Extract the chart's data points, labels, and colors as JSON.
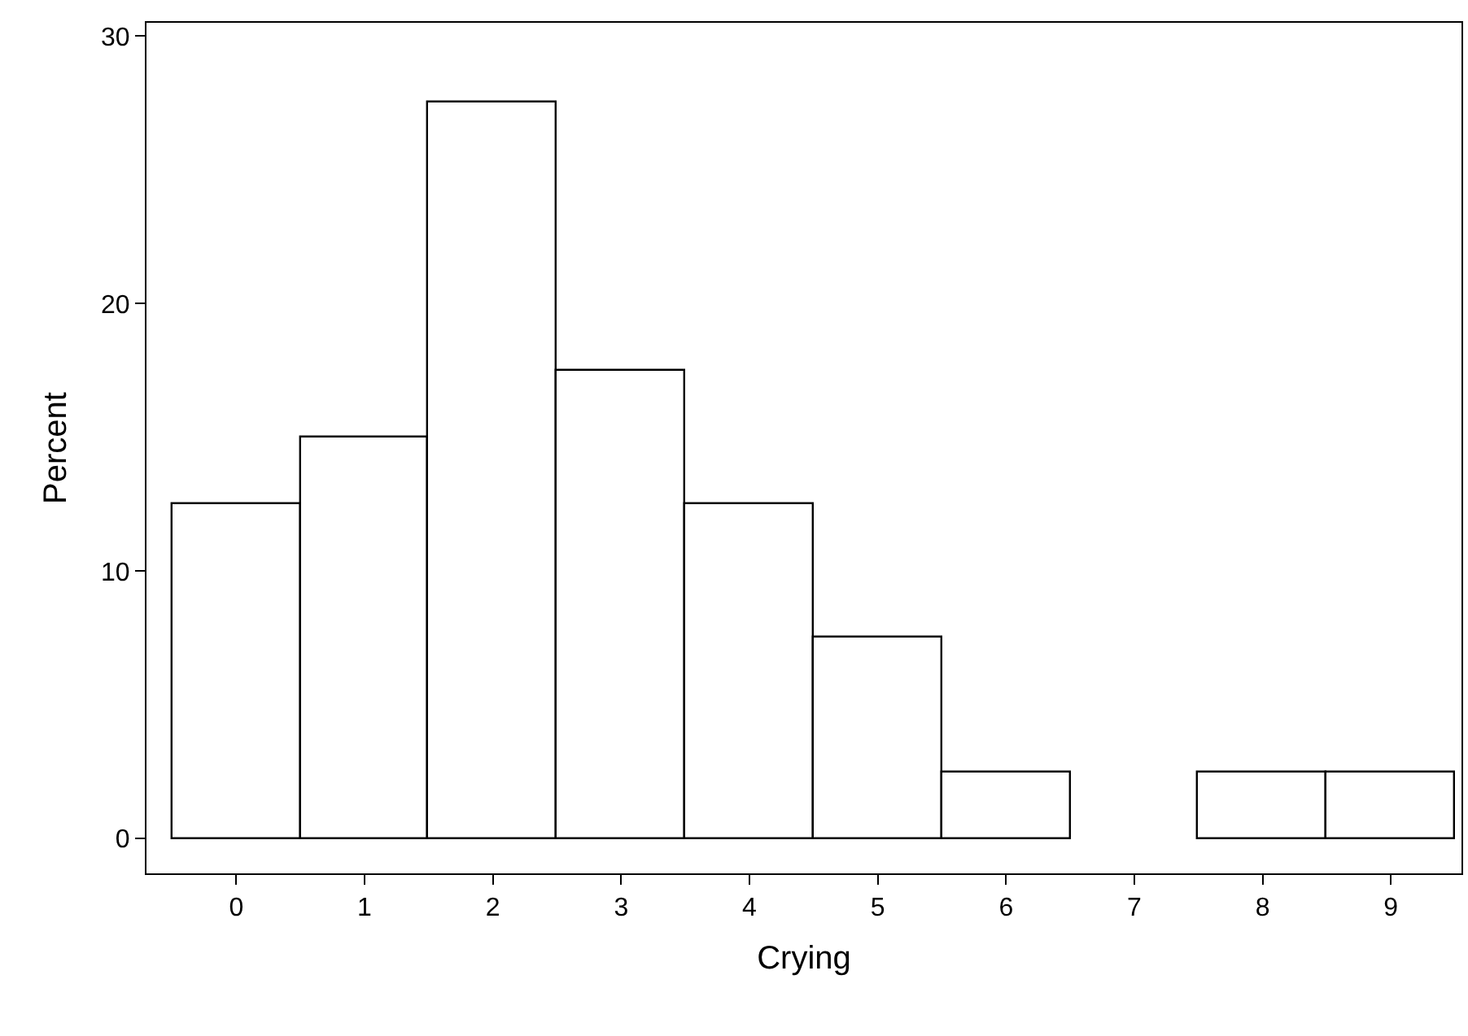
{
  "chart_data": {
    "type": "histogram",
    "xlabel": "Crying",
    "ylabel": "Percent",
    "bins": [
      -0.5,
      0.5,
      1.5,
      2.5,
      3.5,
      4.5,
      5.5,
      6.5,
      7.5,
      8.5,
      9.5
    ],
    "values": [
      12.5,
      15,
      27.5,
      17.5,
      12.5,
      7.5,
      2.5,
      0,
      2.5,
      2.5
    ],
    "color": "#ffffff",
    "xlim": [
      -0.7,
      9.55
    ],
    "xticks": [
      0,
      1,
      2,
      3,
      4,
      5,
      6,
      7,
      8,
      9
    ],
    "ylim": [
      -1.3,
      30.5
    ],
    "yticks": [
      0,
      10,
      20,
      30
    ]
  }
}
